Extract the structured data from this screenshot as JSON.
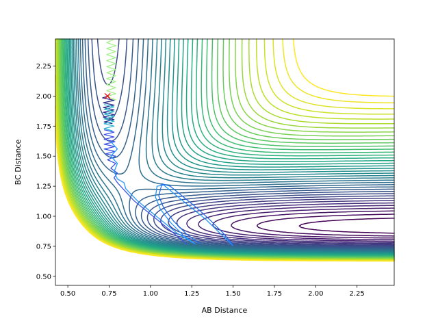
{
  "chart_data": {
    "type": "contour",
    "title": "",
    "xlabel": "AB Distance",
    "ylabel": "BC Distance",
    "xlim": [
      0.425,
      2.475
    ],
    "ylim": [
      0.425,
      2.475
    ],
    "xticks": [
      "0.50",
      "0.75",
      "1.00",
      "1.25",
      "1.50",
      "1.75",
      "2.00",
      "2.25"
    ],
    "yticks": [
      "0.50",
      "0.75",
      "1.00",
      "1.25",
      "1.50",
      "1.75",
      "2.00",
      "2.25"
    ],
    "colormap": "viridis",
    "grid": false,
    "start_marker": {
      "x": 0.74,
      "y": 2.0,
      "symbol": "x",
      "color": "#ff0000"
    },
    "trajectories": [
      {
        "color": "#a6f08c",
        "points": [
          [
            0.775,
            2.47
          ],
          [
            0.735,
            2.445
          ],
          [
            0.79,
            2.42
          ],
          [
            0.735,
            2.395
          ],
          [
            0.79,
            2.37
          ],
          [
            0.735,
            2.345
          ],
          [
            0.79,
            2.32
          ],
          [
            0.735,
            2.295
          ],
          [
            0.79,
            2.27
          ],
          [
            0.735,
            2.245
          ],
          [
            0.79,
            2.22
          ],
          [
            0.735,
            2.195
          ],
          [
            0.79,
            2.17
          ],
          [
            0.735,
            2.145
          ],
          [
            0.79,
            2.12
          ],
          [
            0.735,
            2.095
          ],
          [
            0.79,
            2.07
          ],
          [
            0.735,
            2.045
          ],
          [
            0.79,
            2.02
          ],
          [
            0.735,
            1.995
          ],
          [
            0.79,
            1.97
          ],
          [
            0.74,
            1.95
          ]
        ]
      },
      {
        "color": "#2b2a8c",
        "points": [
          [
            0.745,
            2.0
          ],
          [
            0.71,
            1.985
          ],
          [
            0.78,
            1.965
          ],
          [
            0.715,
            1.945
          ],
          [
            0.78,
            1.925
          ],
          [
            0.715,
            1.905
          ],
          [
            0.78,
            1.885
          ],
          [
            0.715,
            1.865
          ],
          [
            0.78,
            1.845
          ],
          [
            0.715,
            1.825
          ],
          [
            0.78,
            1.805
          ],
          [
            0.72,
            1.785
          ],
          [
            0.77,
            1.77
          ]
        ]
      },
      {
        "color": "#2fb8d0",
        "points": [
          [
            0.72,
            1.93
          ],
          [
            0.78,
            1.91
          ],
          [
            0.72,
            1.89
          ],
          [
            0.78,
            1.87
          ],
          [
            0.72,
            1.85
          ],
          [
            0.78,
            1.83
          ],
          [
            0.72,
            1.81
          ],
          [
            0.78,
            1.79
          ],
          [
            0.72,
            1.77
          ],
          [
            0.78,
            1.75
          ],
          [
            0.72,
            1.73
          ],
          [
            0.77,
            1.71
          ]
        ]
      },
      {
        "color": "#3a52e6",
        "points": [
          [
            0.72,
            1.72
          ],
          [
            0.78,
            1.7
          ],
          [
            0.72,
            1.68
          ],
          [
            0.78,
            1.66
          ],
          [
            0.72,
            1.64
          ],
          [
            0.785,
            1.62
          ],
          [
            0.72,
            1.6
          ],
          [
            0.785,
            1.58
          ],
          [
            0.72,
            1.56
          ],
          [
            0.785,
            1.54
          ],
          [
            0.73,
            1.52
          ],
          [
            0.79,
            1.5
          ],
          [
            0.74,
            1.47
          ],
          [
            0.79,
            1.44
          ],
          [
            0.76,
            1.4
          ],
          [
            0.8,
            1.36
          ],
          [
            0.78,
            1.32
          ],
          [
            0.8,
            1.28
          ],
          [
            0.84,
            1.22
          ],
          [
            0.9,
            1.13
          ],
          [
            0.98,
            1.04
          ],
          [
            1.06,
            0.95
          ],
          [
            1.14,
            0.86
          ],
          [
            1.22,
            0.765
          ]
        ]
      },
      {
        "color": "#2196ff",
        "points": [
          [
            0.76,
            1.62
          ],
          [
            0.8,
            1.56
          ],
          [
            0.76,
            1.5
          ],
          [
            0.8,
            1.44
          ],
          [
            0.78,
            1.37
          ],
          [
            0.8,
            1.31
          ],
          [
            0.84,
            1.28
          ],
          [
            0.85,
            1.23
          ],
          [
            0.92,
            1.13
          ],
          [
            1.0,
            1.04
          ],
          [
            1.08,
            0.95
          ],
          [
            1.16,
            0.86
          ],
          [
            1.27,
            0.77
          ],
          [
            1.2,
            0.84
          ],
          [
            1.12,
            0.95
          ],
          [
            1.06,
            1.06
          ],
          [
            1.03,
            1.16
          ],
          [
            1.04,
            1.25
          ],
          [
            1.08,
            1.26
          ],
          [
            1.15,
            1.18
          ],
          [
            1.24,
            1.08
          ],
          [
            1.33,
            0.98
          ],
          [
            1.42,
            0.86
          ],
          [
            1.5,
            0.755
          ]
        ]
      },
      {
        "color": "#1f6cf2",
        "points": [
          [
            1.3,
            0.77
          ],
          [
            1.22,
            0.85
          ],
          [
            1.14,
            0.96
          ],
          [
            1.08,
            1.07
          ],
          [
            1.05,
            1.17
          ],
          [
            1.07,
            1.27
          ],
          [
            1.12,
            1.25
          ],
          [
            1.2,
            1.16
          ],
          [
            1.28,
            1.07
          ],
          [
            1.36,
            0.97
          ],
          [
            1.44,
            0.86
          ],
          [
            1.5,
            0.76
          ]
        ]
      }
    ]
  }
}
